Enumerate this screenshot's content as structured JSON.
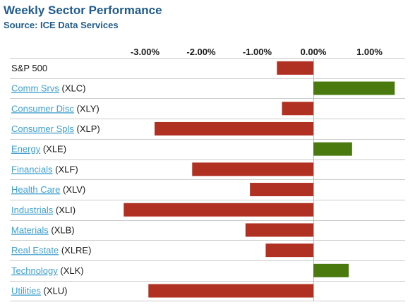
{
  "header": {
    "title": "Weekly Sector Performance",
    "subtitle": "Source: ICE Data Services"
  },
  "colors": {
    "negative": "#b03022",
    "positive": "#4a7a0e",
    "link": "#3f9fcf",
    "title": "#1f5b8c"
  },
  "chart_data": {
    "type": "bar",
    "orientation": "horizontal",
    "x_ticks": [
      -3,
      -2,
      -1,
      0,
      1
    ],
    "x_tick_labels": [
      "-3.00%",
      "-2.00%",
      "-1.00%",
      "0.00%",
      "1.00%"
    ],
    "xlim": [
      -3.4,
      1.7
    ],
    "grid": "horizontal row separators",
    "categories": [
      {
        "name": "S&P 500",
        "ticker": "",
        "link": false,
        "value": -0.65
      },
      {
        "name": "Comm Srvs",
        "ticker": "(XLC)",
        "link": true,
        "value": 1.45
      },
      {
        "name": "Consumer Disc",
        "ticker": "(XLY)",
        "link": true,
        "value": -0.56
      },
      {
        "name": "Consumer Spls",
        "ticker": "(XLP)",
        "link": true,
        "value": -2.83
      },
      {
        "name": "Energy",
        "ticker": "(XLE)",
        "link": true,
        "value": 0.69
      },
      {
        "name": "Financials",
        "ticker": "(XLF)",
        "link": true,
        "value": -2.16
      },
      {
        "name": "Health Care",
        "ticker": "(XLV)",
        "link": true,
        "value": -1.13
      },
      {
        "name": "Industrials",
        "ticker": "(XLI)",
        "link": true,
        "value": -3.38
      },
      {
        "name": "Materials",
        "ticker": "(XLB)",
        "link": true,
        "value": -1.21
      },
      {
        "name": "Real Estate",
        "ticker": "(XLRE)",
        "link": true,
        "value": -0.85
      },
      {
        "name": "Technology",
        "ticker": "(XLK)",
        "link": true,
        "value": 0.63
      },
      {
        "name": "Utilities",
        "ticker": "(XLU)",
        "link": true,
        "value": -2.94
      }
    ]
  }
}
